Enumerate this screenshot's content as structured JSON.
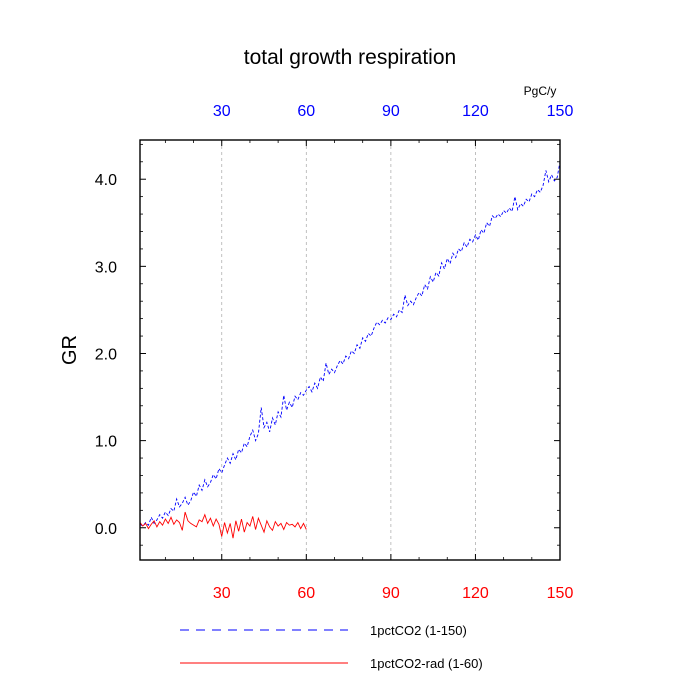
{
  "chart_data": {
    "type": "line",
    "title": "total growth respiration",
    "ylabel": "GR",
    "units_label": "PgC/y",
    "xlim": [
      1,
      150
    ],
    "ylim": [
      -0.37,
      4.45
    ],
    "x_ticks": [
      30,
      60,
      90,
      120,
      150
    ],
    "x_tick_labels_top": [
      "30",
      "60",
      "90",
      "120",
      "150"
    ],
    "x_tick_labels_bottom": [
      "30",
      "60",
      "90",
      "120",
      "150"
    ],
    "y_ticks": [
      0.0,
      1.0,
      2.0,
      3.0,
      4.0
    ],
    "y_tick_labels": [
      "0.0",
      "1.0",
      "2.0",
      "3.0",
      "4.0"
    ],
    "top_axis_color": "#0000ff",
    "bottom_axis_color": "#ff0000",
    "grid": "vertical dashed at x ticks",
    "legend_position": "bottom",
    "series": [
      {
        "name": "1pctCO2 (1-150)",
        "color": "#0000ff",
        "style": "dashed",
        "x_start": 1,
        "values": [
          0.04,
          0.02,
          0.06,
          0.03,
          0.12,
          0.05,
          0.09,
          0.15,
          0.11,
          0.18,
          0.14,
          0.22,
          0.19,
          0.33,
          0.24,
          0.28,
          0.35,
          0.26,
          0.31,
          0.41,
          0.36,
          0.49,
          0.43,
          0.55,
          0.47,
          0.52,
          0.61,
          0.56,
          0.68,
          0.63,
          0.72,
          0.8,
          0.74,
          0.85,
          0.78,
          0.9,
          0.86,
          0.97,
          0.93,
          1.05,
          1.12,
          1.0,
          1.08,
          1.38,
          1.15,
          1.21,
          1.1,
          1.26,
          1.18,
          1.33,
          1.27,
          1.52,
          1.35,
          1.44,
          1.38,
          1.51,
          1.47,
          1.55,
          1.52,
          1.58,
          1.62,
          1.56,
          1.66,
          1.6,
          1.73,
          1.68,
          1.89,
          1.76,
          1.82,
          1.78,
          1.86,
          1.92,
          1.88,
          1.97,
          1.94,
          2.03,
          2.0,
          2.1,
          2.06,
          2.18,
          2.14,
          2.23,
          2.2,
          2.29,
          2.36,
          2.33,
          2.38,
          2.35,
          2.41,
          2.39,
          2.45,
          2.42,
          2.5,
          2.47,
          2.67,
          2.55,
          2.6,
          2.56,
          2.64,
          2.7,
          2.66,
          2.79,
          2.74,
          2.88,
          2.82,
          2.93,
          2.89,
          3.04,
          2.97,
          3.09,
          3.03,
          3.15,
          3.1,
          3.2,
          3.17,
          3.27,
          3.22,
          3.31,
          3.28,
          3.36,
          3.3,
          3.42,
          3.38,
          3.5,
          3.46,
          3.58,
          3.55,
          3.6,
          3.57,
          3.64,
          3.61,
          3.67,
          3.63,
          3.8,
          3.65,
          3.72,
          3.69,
          3.77,
          3.74,
          3.83,
          3.8,
          3.88,
          3.85,
          3.93,
          4.1,
          3.97,
          4.05,
          3.98,
          4.02,
          4.2
        ]
      },
      {
        "name": "1pctCO2-rad (1-60)",
        "color": "#ff0000",
        "style": "solid",
        "x_start": 1,
        "values": [
          0.06,
          0.02,
          0.05,
          -0.01,
          0.04,
          0.08,
          0.01,
          0.07,
          0.03,
          0.1,
          0.05,
          0.12,
          0.04,
          0.09,
          0.06,
          -0.03,
          0.18,
          0.08,
          0.05,
          0.03,
          0.01,
          0.09,
          0.07,
          0.15,
          0.05,
          0.11,
          0.02,
          0.1,
          0.04,
          -0.1,
          0.06,
          -0.06,
          0.05,
          -0.12,
          0.08,
          -0.04,
          0.1,
          -0.05,
          0.06,
          0.02,
          0.13,
          -0.02,
          0.11,
          0.03,
          -0.05,
          0.08,
          0.01,
          -0.03,
          0.07,
          0.02,
          0.05,
          -0.02,
          0.06,
          0.03,
          0.04,
          0.01,
          0.06,
          -0.01,
          0.05,
          -0.02
        ]
      }
    ]
  }
}
